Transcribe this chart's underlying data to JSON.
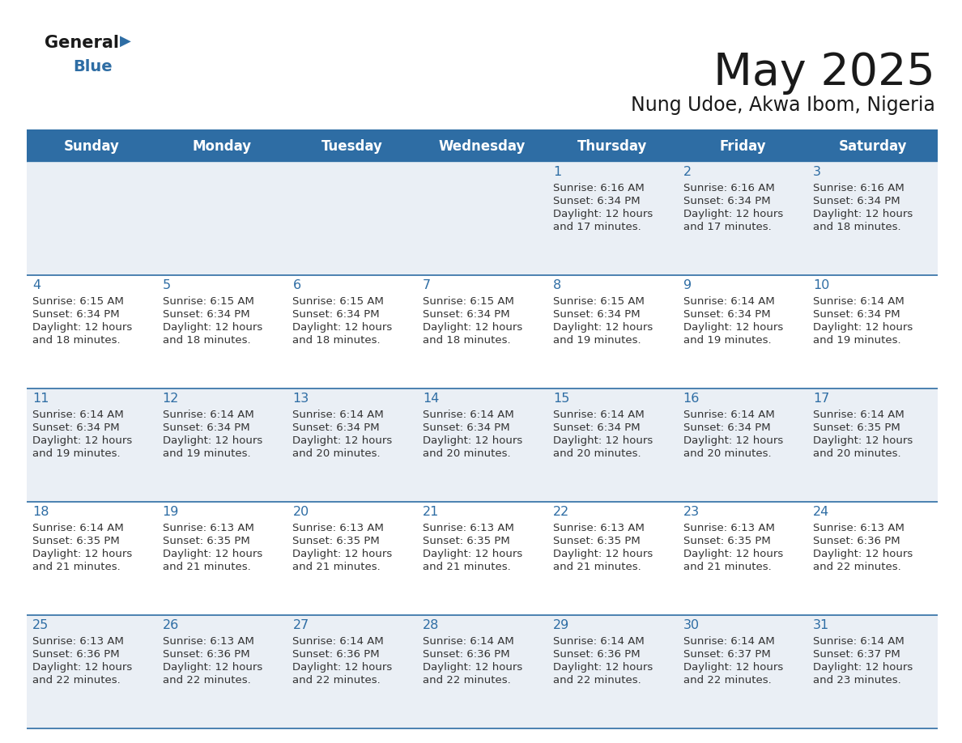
{
  "title": "May 2025",
  "subtitle": "Nung Udoe, Akwa Ibom, Nigeria",
  "header_color": "#2E6DA4",
  "header_text_color": "#FFFFFF",
  "day_names": [
    "Sunday",
    "Monday",
    "Tuesday",
    "Wednesday",
    "Thursday",
    "Friday",
    "Saturday"
  ],
  "background_color": "#FFFFFF",
  "cell_bg_even": "#EAEFF5",
  "cell_bg_odd": "#FFFFFF",
  "separator_color": "#2E6DA4",
  "number_color": "#2E6DA4",
  "text_color": "#333333",
  "logo_general_color": "#1a1a1a",
  "logo_blue_color": "#2E6DA4",
  "logo_triangle_color": "#2E6DA4",
  "days": [
    {
      "day": 1,
      "col": 4,
      "row": 0,
      "sunrise": "6:16 AM",
      "sunset": "6:34 PM",
      "daylight_hours": "12 hours",
      "daylight_mins": "17 minutes."
    },
    {
      "day": 2,
      "col": 5,
      "row": 0,
      "sunrise": "6:16 AM",
      "sunset": "6:34 PM",
      "daylight_hours": "12 hours",
      "daylight_mins": "17 minutes."
    },
    {
      "day": 3,
      "col": 6,
      "row": 0,
      "sunrise": "6:16 AM",
      "sunset": "6:34 PM",
      "daylight_hours": "12 hours",
      "daylight_mins": "18 minutes."
    },
    {
      "day": 4,
      "col": 0,
      "row": 1,
      "sunrise": "6:15 AM",
      "sunset": "6:34 PM",
      "daylight_hours": "12 hours",
      "daylight_mins": "18 minutes."
    },
    {
      "day": 5,
      "col": 1,
      "row": 1,
      "sunrise": "6:15 AM",
      "sunset": "6:34 PM",
      "daylight_hours": "12 hours",
      "daylight_mins": "18 minutes."
    },
    {
      "day": 6,
      "col": 2,
      "row": 1,
      "sunrise": "6:15 AM",
      "sunset": "6:34 PM",
      "daylight_hours": "12 hours",
      "daylight_mins": "18 minutes."
    },
    {
      "day": 7,
      "col": 3,
      "row": 1,
      "sunrise": "6:15 AM",
      "sunset": "6:34 PM",
      "daylight_hours": "12 hours",
      "daylight_mins": "18 minutes."
    },
    {
      "day": 8,
      "col": 4,
      "row": 1,
      "sunrise": "6:15 AM",
      "sunset": "6:34 PM",
      "daylight_hours": "12 hours",
      "daylight_mins": "19 minutes."
    },
    {
      "day": 9,
      "col": 5,
      "row": 1,
      "sunrise": "6:14 AM",
      "sunset": "6:34 PM",
      "daylight_hours": "12 hours",
      "daylight_mins": "19 minutes."
    },
    {
      "day": 10,
      "col": 6,
      "row": 1,
      "sunrise": "6:14 AM",
      "sunset": "6:34 PM",
      "daylight_hours": "12 hours",
      "daylight_mins": "19 minutes."
    },
    {
      "day": 11,
      "col": 0,
      "row": 2,
      "sunrise": "6:14 AM",
      "sunset": "6:34 PM",
      "daylight_hours": "12 hours",
      "daylight_mins": "19 minutes."
    },
    {
      "day": 12,
      "col": 1,
      "row": 2,
      "sunrise": "6:14 AM",
      "sunset": "6:34 PM",
      "daylight_hours": "12 hours",
      "daylight_mins": "19 minutes."
    },
    {
      "day": 13,
      "col": 2,
      "row": 2,
      "sunrise": "6:14 AM",
      "sunset": "6:34 PM",
      "daylight_hours": "12 hours",
      "daylight_mins": "20 minutes."
    },
    {
      "day": 14,
      "col": 3,
      "row": 2,
      "sunrise": "6:14 AM",
      "sunset": "6:34 PM",
      "daylight_hours": "12 hours",
      "daylight_mins": "20 minutes."
    },
    {
      "day": 15,
      "col": 4,
      "row": 2,
      "sunrise": "6:14 AM",
      "sunset": "6:34 PM",
      "daylight_hours": "12 hours",
      "daylight_mins": "20 minutes."
    },
    {
      "day": 16,
      "col": 5,
      "row": 2,
      "sunrise": "6:14 AM",
      "sunset": "6:34 PM",
      "daylight_hours": "12 hours",
      "daylight_mins": "20 minutes."
    },
    {
      "day": 17,
      "col": 6,
      "row": 2,
      "sunrise": "6:14 AM",
      "sunset": "6:35 PM",
      "daylight_hours": "12 hours",
      "daylight_mins": "20 minutes."
    },
    {
      "day": 18,
      "col": 0,
      "row": 3,
      "sunrise": "6:14 AM",
      "sunset": "6:35 PM",
      "daylight_hours": "12 hours",
      "daylight_mins": "21 minutes."
    },
    {
      "day": 19,
      "col": 1,
      "row": 3,
      "sunrise": "6:13 AM",
      "sunset": "6:35 PM",
      "daylight_hours": "12 hours",
      "daylight_mins": "21 minutes."
    },
    {
      "day": 20,
      "col": 2,
      "row": 3,
      "sunrise": "6:13 AM",
      "sunset": "6:35 PM",
      "daylight_hours": "12 hours",
      "daylight_mins": "21 minutes."
    },
    {
      "day": 21,
      "col": 3,
      "row": 3,
      "sunrise": "6:13 AM",
      "sunset": "6:35 PM",
      "daylight_hours": "12 hours",
      "daylight_mins": "21 minutes."
    },
    {
      "day": 22,
      "col": 4,
      "row": 3,
      "sunrise": "6:13 AM",
      "sunset": "6:35 PM",
      "daylight_hours": "12 hours",
      "daylight_mins": "21 minutes."
    },
    {
      "day": 23,
      "col": 5,
      "row": 3,
      "sunrise": "6:13 AM",
      "sunset": "6:35 PM",
      "daylight_hours": "12 hours",
      "daylight_mins": "21 minutes."
    },
    {
      "day": 24,
      "col": 6,
      "row": 3,
      "sunrise": "6:13 AM",
      "sunset": "6:36 PM",
      "daylight_hours": "12 hours",
      "daylight_mins": "22 minutes."
    },
    {
      "day": 25,
      "col": 0,
      "row": 4,
      "sunrise": "6:13 AM",
      "sunset": "6:36 PM",
      "daylight_hours": "12 hours",
      "daylight_mins": "22 minutes."
    },
    {
      "day": 26,
      "col": 1,
      "row": 4,
      "sunrise": "6:13 AM",
      "sunset": "6:36 PM",
      "daylight_hours": "12 hours",
      "daylight_mins": "22 minutes."
    },
    {
      "day": 27,
      "col": 2,
      "row": 4,
      "sunrise": "6:14 AM",
      "sunset": "6:36 PM",
      "daylight_hours": "12 hours",
      "daylight_mins": "22 minutes."
    },
    {
      "day": 28,
      "col": 3,
      "row": 4,
      "sunrise": "6:14 AM",
      "sunset": "6:36 PM",
      "daylight_hours": "12 hours",
      "daylight_mins": "22 minutes."
    },
    {
      "day": 29,
      "col": 4,
      "row": 4,
      "sunrise": "6:14 AM",
      "sunset": "6:36 PM",
      "daylight_hours": "12 hours",
      "daylight_mins": "22 minutes."
    },
    {
      "day": 30,
      "col": 5,
      "row": 4,
      "sunrise": "6:14 AM",
      "sunset": "6:37 PM",
      "daylight_hours": "12 hours",
      "daylight_mins": "22 minutes."
    },
    {
      "day": 31,
      "col": 6,
      "row": 4,
      "sunrise": "6:14 AM",
      "sunset": "6:37 PM",
      "daylight_hours": "12 hours",
      "daylight_mins": "23 minutes."
    }
  ]
}
